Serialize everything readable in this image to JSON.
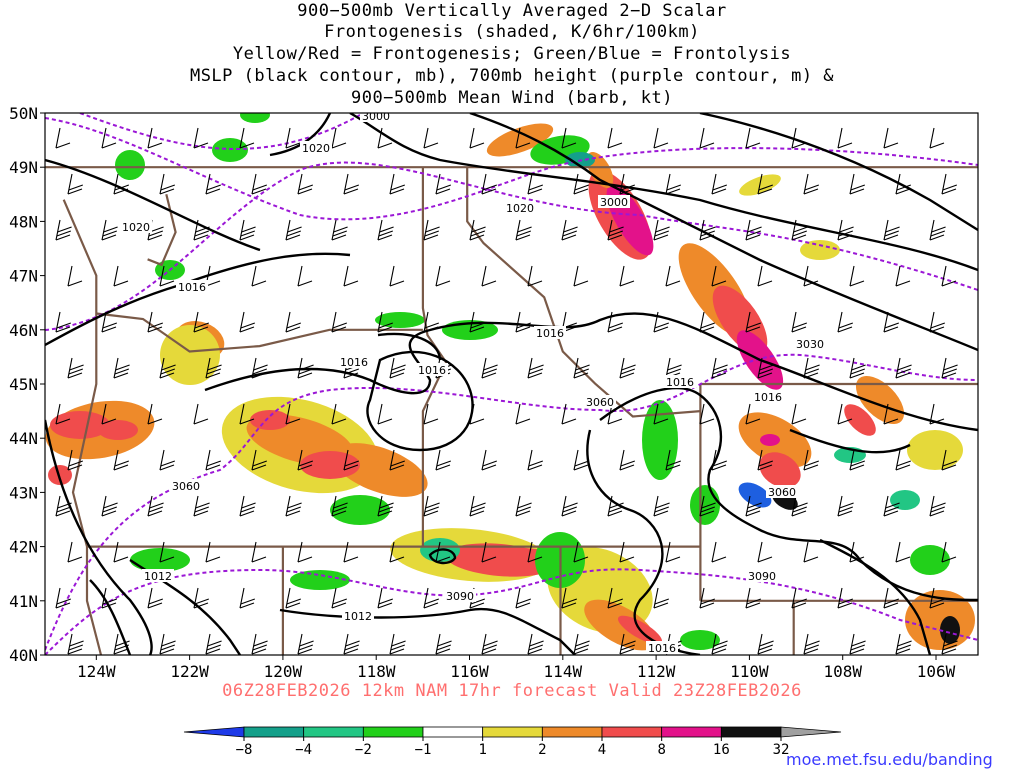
{
  "title": {
    "line1": "900−500mb Vertically Averaged 2−D Scalar",
    "line2": "Frontogenesis (shaded, K/6hr/100km)",
    "line3": "Yellow/Red = Frontogenesis;  Green/Blue = Frontolysis",
    "line4": "MSLP (black contour, mb), 700mb height (purple contour, m) &",
    "line5": "900−500mb Mean Wind (barb, kt)"
  },
  "footer": {
    "run": "06Z28FEB2026 12km NAM 17hr forecast Valid 23Z28FEB2026",
    "url": "moe.met.fsu.edu/banding"
  },
  "map": {
    "lat_labels": [
      "50N",
      "49N",
      "48N",
      "47N",
      "46N",
      "45N",
      "44N",
      "43N",
      "42N",
      "41N",
      "40N"
    ],
    "lon_labels": [
      "124W",
      "122W",
      "120W",
      "118W",
      "116W",
      "114W",
      "112W",
      "110W",
      "108W",
      "106W"
    ],
    "lat_range": [
      40,
      50
    ],
    "lon_range": [
      -125.1,
      -105.1
    ]
  },
  "colors": {
    "frontogenesis_fill": [
      "#e5d93a",
      "#ee8a2a",
      "#f04c4c",
      "#e3128a",
      "#111111",
      "#a0a0a0"
    ],
    "frontolysis_fill": [
      "#22d01a",
      "#22c684",
      "#14a08a",
      "#1e5fe0"
    ],
    "mslp_contour": "#000000",
    "height_contour": "#9b17d6",
    "boundaries": "#7a5a48"
  },
  "mslp_labels": [
    "1020",
    "1020",
    "1020",
    "1016",
    "1016",
    "1016",
    "1016",
    "1016",
    "1016",
    "1012",
    "1012",
    "1016"
  ],
  "height_labels": [
    "3000",
    "3000",
    "3030",
    "3060",
    "3060",
    "3060",
    "3090",
    "3090"
  ],
  "colorbar": {
    "ticks": [
      "−8",
      "−4",
      "−2",
      "−1",
      "1",
      "2",
      "4",
      "8",
      "16",
      "32"
    ],
    "colors": [
      "#1e3ae8",
      "#14a08a",
      "#22c684",
      "#22d01a",
      "#ffffff",
      "#e5d93a",
      "#ee8a2a",
      "#f04c4c",
      "#e3128a",
      "#111111",
      "#a0a0a0"
    ]
  }
}
